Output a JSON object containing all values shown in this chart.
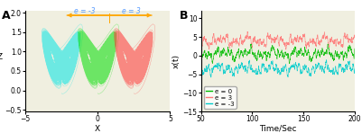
{
  "panel_A_label": "A",
  "panel_B_label": "B",
  "left_color": "#00E5E5",
  "mid_color": "#00DD00",
  "right_color": "#FF3333",
  "xlim_A": [
    -5,
    5
  ],
  "ylim_A": [
    -0.55,
    2.05
  ],
  "xlabel_A": "X",
  "ylabel_A": "Z",
  "xticks_A": [
    -5,
    0,
    5
  ],
  "yticks_A": [
    -0.5,
    0,
    0.5,
    1,
    1.5,
    2
  ],
  "arrow_color": "#FFA500",
  "arrow_text_color": "#5599FF",
  "arrow_label_left": "e = -3",
  "arrow_label_right": "e = 3",
  "xlim_B": [
    50,
    200
  ],
  "ylim_B": [
    -15,
    12
  ],
  "xlabel_B": "Time/Sec",
  "ylabel_B": "x(t)",
  "xticks_B": [
    50,
    100,
    150,
    200
  ],
  "yticks_B": [
    -15,
    -10,
    -5,
    0,
    5,
    10
  ],
  "legend_labels": [
    "e = 0",
    "e = 3",
    "e = -3"
  ],
  "legend_colors": [
    "#00BB00",
    "#FF7777",
    "#00CCCC"
  ],
  "time_start": 50,
  "time_end": 200,
  "mean_e0": 0.5,
  "mean_e3": 4.0,
  "mean_em3": -3.5,
  "bg_color": "#F0EFE0"
}
